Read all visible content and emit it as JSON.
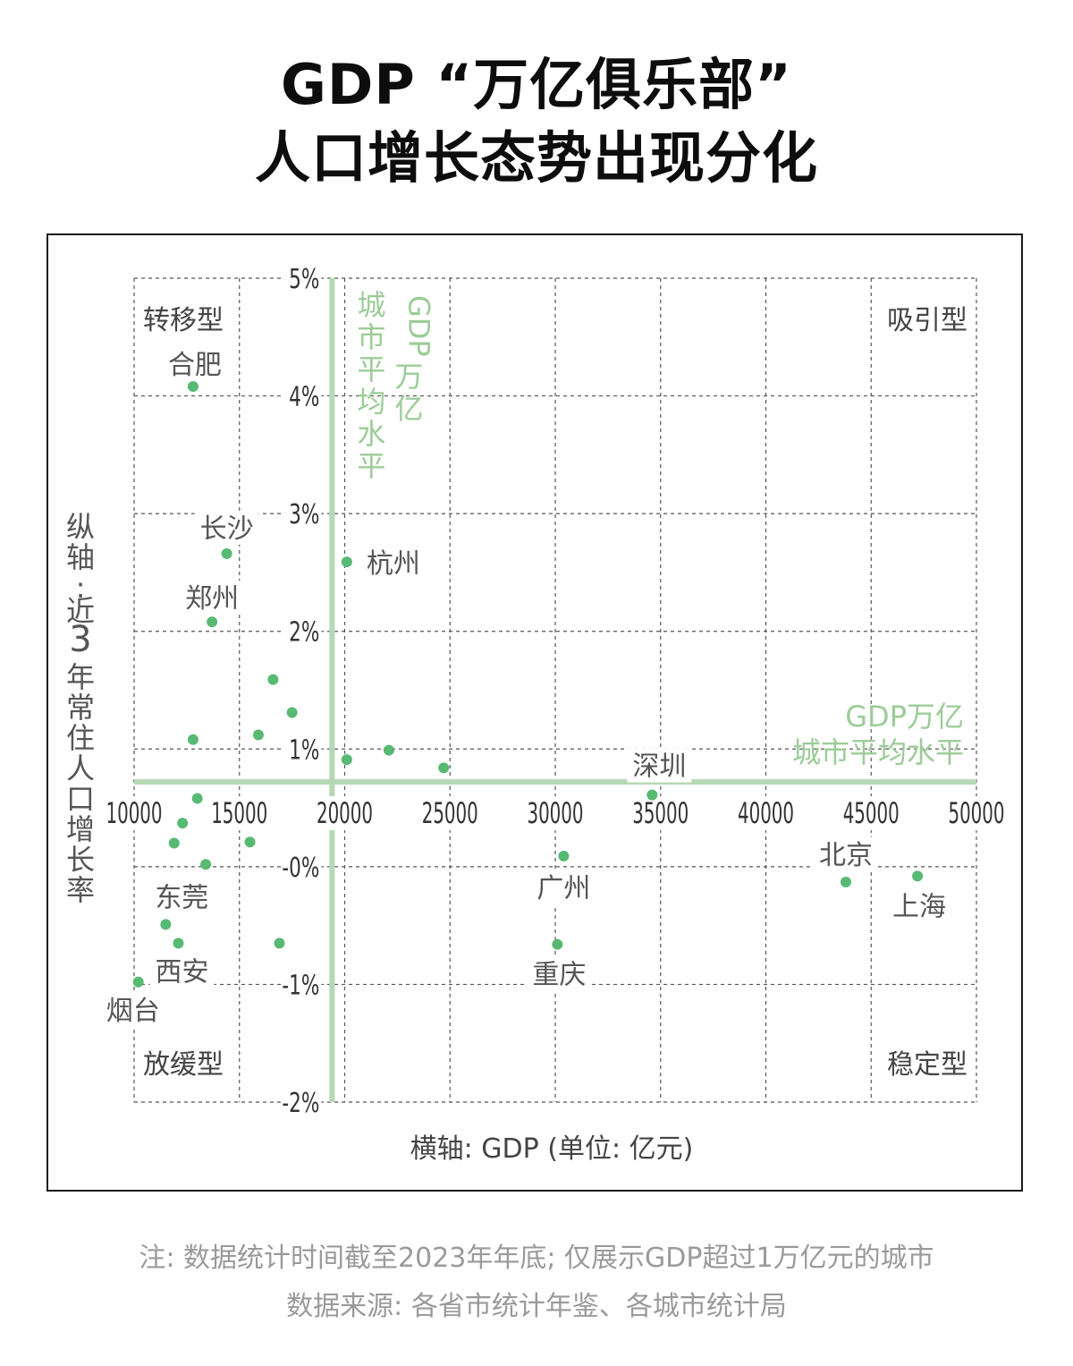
{
  "title": {
    "line1": "GDP “万亿俱乐部”",
    "line2": "人口增长态势出现分化"
  },
  "footer": {
    "note": "注: 数据统计时间截至2023年年底; 仅展示GDP超过1万亿元的城市",
    "source": "数据来源: 各省市统计年鉴、各城市统计局"
  },
  "colors": {
    "point": "#58b973",
    "avg_line": "#b5d9b2",
    "avg_text": "#9ccc98",
    "grid": "#555555",
    "label": "#555555"
  },
  "chart_data": {
    "type": "scatter",
    "xlabel": "横轴: GDP (单位: 亿元)",
    "ylabel": "纵轴: 近3年常住人口增长率",
    "xlim": [
      10000,
      50000
    ],
    "ylim": [
      -2,
      5
    ],
    "x_ticks": [
      10000,
      15000,
      20000,
      25000,
      30000,
      35000,
      40000,
      45000,
      50000
    ],
    "x_tick_labels": [
      "10000",
      "15000",
      "20000",
      "25000",
      "30000",
      "35000",
      "40000",
      "45000",
      "50000"
    ],
    "y_ticks": [
      5,
      4,
      3,
      2,
      1,
      0,
      -1,
      -2
    ],
    "y_tick_labels": [
      "5%",
      "4%",
      "3%",
      "2%",
      "1%",
      "-0%",
      "-1%",
      "-2%"
    ],
    "grid": true,
    "reference_lines": {
      "x": {
        "value": 19400,
        "label": "GDP万亿城市平均水平"
      },
      "y": {
        "value": 0.72,
        "label": "GDP万亿城市平均水平"
      }
    },
    "quadrants": [
      {
        "name": "转移型",
        "position": "top-left"
      },
      {
        "name": "吸引型",
        "position": "top-right"
      },
      {
        "name": "放缓型",
        "position": "bottom-left"
      },
      {
        "name": "稳定型",
        "position": "bottom-right"
      }
    ],
    "points": [
      {
        "label": "合肥",
        "x": 12800,
        "y": 4.08
      },
      {
        "label": "长沙",
        "x": 14400,
        "y": 2.66
      },
      {
        "label": "郑州",
        "x": 13700,
        "y": 2.08
      },
      {
        "label": "杭州",
        "x": 20100,
        "y": 2.59
      },
      {
        "label": "",
        "x": 16600,
        "y": 1.59
      },
      {
        "label": "",
        "x": 17500,
        "y": 1.31
      },
      {
        "label": "",
        "x": 15900,
        "y": 1.12
      },
      {
        "label": "",
        "x": 12800,
        "y": 1.08
      },
      {
        "label": "",
        "x": 22100,
        "y": 0.99
      },
      {
        "label": "",
        "x": 20100,
        "y": 0.91
      },
      {
        "label": "",
        "x": 24700,
        "y": 0.84
      },
      {
        "label": "深圳",
        "x": 34600,
        "y": 0.61
      },
      {
        "label": "",
        "x": 13000,
        "y": 0.58
      },
      {
        "label": "",
        "x": 12300,
        "y": 0.37
      },
      {
        "label": "",
        "x": 11900,
        "y": 0.2
      },
      {
        "label": "",
        "x": 15500,
        "y": 0.21
      },
      {
        "label": "",
        "x": 13400,
        "y": 0.02
      },
      {
        "label": "广州",
        "x": 30400,
        "y": 0.09
      },
      {
        "label": "北京",
        "x": 43800,
        "y": -0.13
      },
      {
        "label": "上海",
        "x": 47200,
        "y": -0.08
      },
      {
        "label": "东莞",
        "x": 11500,
        "y": -0.49
      },
      {
        "label": "西安",
        "x": 12100,
        "y": -0.65
      },
      {
        "label": "",
        "x": 16900,
        "y": -0.65
      },
      {
        "label": "重庆",
        "x": 30100,
        "y": -0.66
      },
      {
        "label": "烟台",
        "x": 10200,
        "y": -0.98
      }
    ]
  }
}
